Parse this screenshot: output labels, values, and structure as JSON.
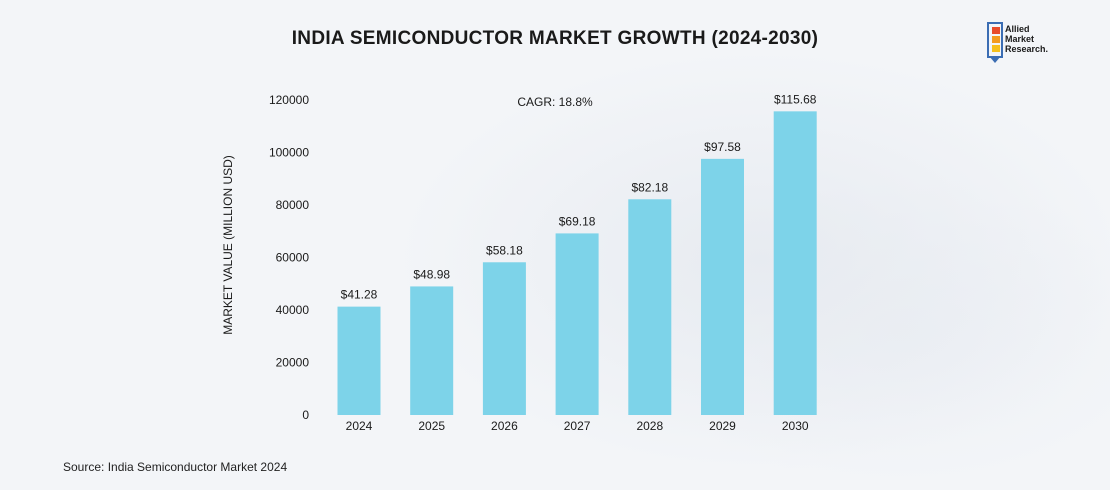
{
  "logo": {
    "lines": [
      "Allied",
      "Market",
      "Research."
    ]
  },
  "source_text": "Source:  India Semiconductor Market 2024",
  "chart_data": {
    "type": "bar",
    "title": "INDIA SEMICONDUCTOR MARKET GROWTH (2024-2030)",
    "xlabel": "",
    "ylabel": "MARKET VALUE (MILLION USD)",
    "annotation": "CAGR: 18.8%",
    "categories": [
      "2024",
      "2025",
      "2026",
      "2027",
      "2028",
      "2029",
      "2030"
    ],
    "values": [
      41280,
      48980,
      58180,
      69180,
      82180,
      97580,
      115680
    ],
    "data_labels": [
      "$41.28",
      "$48.98",
      "$58.18",
      "$69.18",
      "$82.18",
      "$97.58",
      "$115.68"
    ],
    "yticks": [
      "0",
      "20000",
      "40000",
      "60000",
      "80000",
      "100000",
      "120000"
    ],
    "ylim": [
      0,
      120000
    ],
    "bar_color": "#7dd3e9",
    "grid": false
  }
}
